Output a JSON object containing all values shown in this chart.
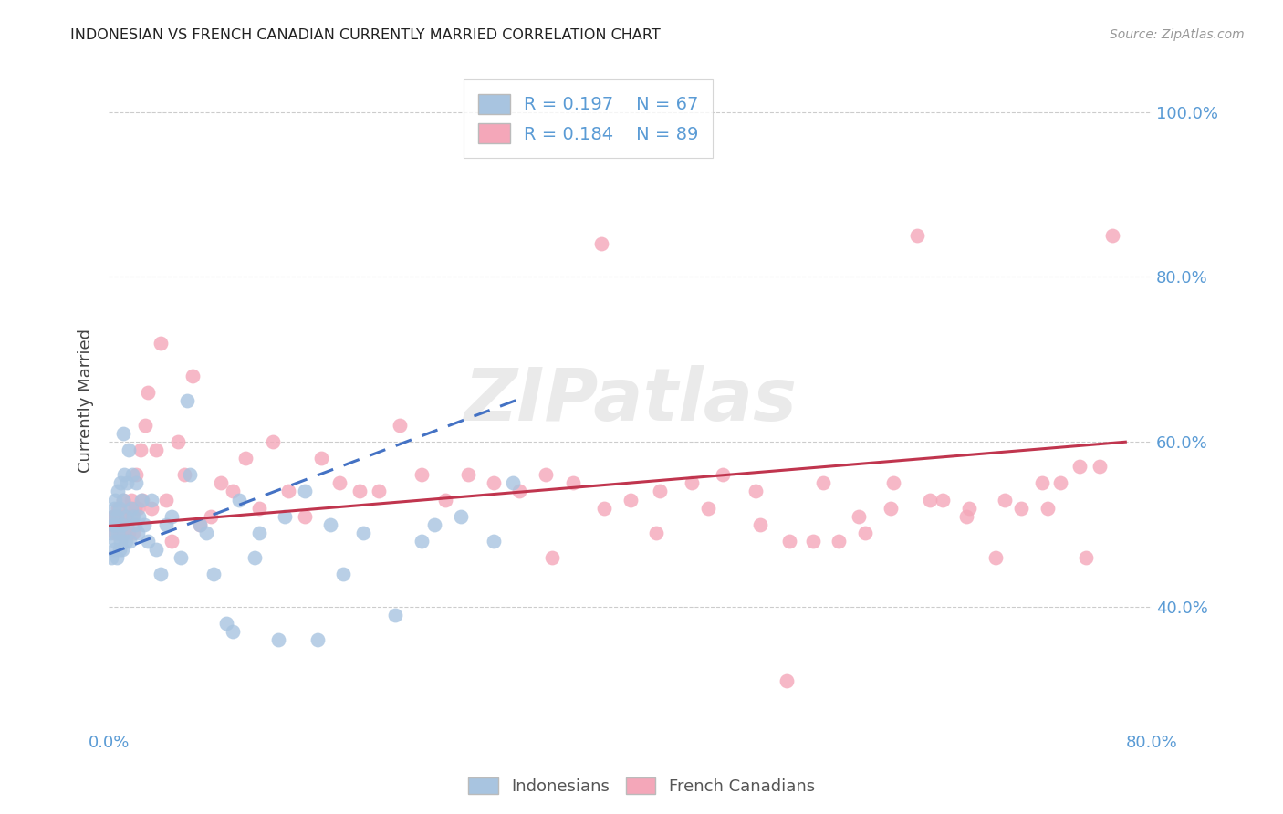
{
  "title": "INDONESIAN VS FRENCH CANADIAN CURRENTLY MARRIED CORRELATION CHART",
  "source": "Source: ZipAtlas.com",
  "ylabel": "Currently Married",
  "xlabel_indonesian": "Indonesians",
  "xlabel_french": "French Canadians",
  "xlim": [
    0.0,
    0.8
  ],
  "ylim": [
    0.25,
    1.05
  ],
  "y_ticks": [
    0.4,
    0.6,
    0.8,
    1.0
  ],
  "y_tick_labels": [
    "40.0%",
    "60.0%",
    "80.0%",
    "100.0%"
  ],
  "x_ticks": [
    0.0,
    0.1,
    0.2,
    0.3,
    0.4,
    0.5,
    0.6,
    0.7,
    0.8
  ],
  "x_tick_labels": [
    "0.0%",
    "",
    "",
    "",
    "",
    "",
    "",
    "",
    "80.0%"
  ],
  "color_indonesian": "#a8c4e0",
  "color_french": "#f4a7b9",
  "line_color_indonesian": "#4472c4",
  "line_color_french": "#c0354e",
  "watermark": "ZIPatlas",
  "legend_R_indonesian": "R = 0.197",
  "legend_N_indonesian": "N = 67",
  "legend_R_french": "R = 0.184",
  "legend_N_french": "N = 89",
  "background_color": "#ffffff",
  "grid_color": "#cccccc",
  "tick_label_color": "#5a9bd5",
  "indonesian_x": [
    0.001,
    0.002,
    0.003,
    0.003,
    0.004,
    0.004,
    0.005,
    0.005,
    0.005,
    0.006,
    0.006,
    0.007,
    0.007,
    0.008,
    0.008,
    0.009,
    0.009,
    0.01,
    0.01,
    0.011,
    0.011,
    0.012,
    0.012,
    0.013,
    0.013,
    0.014,
    0.015,
    0.016,
    0.017,
    0.018,
    0.019,
    0.02,
    0.021,
    0.022,
    0.023,
    0.025,
    0.027,
    0.03,
    0.033,
    0.036,
    0.04,
    0.044,
    0.048,
    0.055,
    0.062,
    0.07,
    0.08,
    0.09,
    0.1,
    0.115,
    0.13,
    0.15,
    0.17,
    0.195,
    0.22,
    0.25,
    0.27,
    0.295,
    0.31,
    0.24,
    0.18,
    0.16,
    0.135,
    0.112,
    0.095,
    0.075,
    0.06
  ],
  "indonesian_y": [
    0.49,
    0.46,
    0.5,
    0.51,
    0.47,
    0.52,
    0.48,
    0.5,
    0.53,
    0.46,
    0.51,
    0.49,
    0.54,
    0.47,
    0.52,
    0.48,
    0.55,
    0.5,
    0.47,
    0.53,
    0.61,
    0.49,
    0.56,
    0.48,
    0.51,
    0.55,
    0.59,
    0.48,
    0.52,
    0.56,
    0.51,
    0.5,
    0.55,
    0.49,
    0.51,
    0.53,
    0.5,
    0.48,
    0.53,
    0.47,
    0.44,
    0.5,
    0.51,
    0.46,
    0.56,
    0.5,
    0.44,
    0.38,
    0.53,
    0.49,
    0.36,
    0.54,
    0.5,
    0.49,
    0.39,
    0.5,
    0.51,
    0.48,
    0.55,
    0.48,
    0.44,
    0.36,
    0.51,
    0.46,
    0.37,
    0.49,
    0.65
  ],
  "french_x": [
    0.002,
    0.003,
    0.004,
    0.005,
    0.006,
    0.007,
    0.008,
    0.009,
    0.01,
    0.011,
    0.012,
    0.013,
    0.014,
    0.015,
    0.016,
    0.017,
    0.018,
    0.019,
    0.02,
    0.021,
    0.022,
    0.024,
    0.026,
    0.028,
    0.03,
    0.033,
    0.036,
    0.04,
    0.044,
    0.048,
    0.053,
    0.058,
    0.064,
    0.07,
    0.078,
    0.086,
    0.095,
    0.105,
    0.115,
    0.126,
    0.138,
    0.15,
    0.163,
    0.177,
    0.192,
    0.207,
    0.223,
    0.24,
    0.258,
    0.276,
    0.295,
    0.315,
    0.335,
    0.356,
    0.378,
    0.4,
    0.423,
    0.447,
    0.471,
    0.496,
    0.522,
    0.548,
    0.575,
    0.602,
    0.63,
    0.658,
    0.687,
    0.716,
    0.745,
    0.77,
    0.34,
    0.38,
    0.42,
    0.46,
    0.5,
    0.54,
    0.58,
    0.62,
    0.66,
    0.7,
    0.73,
    0.75,
    0.76,
    0.72,
    0.68,
    0.64,
    0.6,
    0.56,
    0.52
  ],
  "french_y": [
    0.5,
    0.51,
    0.49,
    0.51,
    0.5,
    0.52,
    0.49,
    0.51,
    0.5,
    0.53,
    0.49,
    0.51,
    0.5,
    0.49,
    0.52,
    0.53,
    0.51,
    0.49,
    0.52,
    0.56,
    0.52,
    0.59,
    0.53,
    0.62,
    0.66,
    0.52,
    0.59,
    0.72,
    0.53,
    0.48,
    0.6,
    0.56,
    0.68,
    0.5,
    0.51,
    0.55,
    0.54,
    0.58,
    0.52,
    0.6,
    0.54,
    0.51,
    0.58,
    0.55,
    0.54,
    0.54,
    0.62,
    0.56,
    0.53,
    0.56,
    0.55,
    0.54,
    0.56,
    0.55,
    0.84,
    0.53,
    0.54,
    0.55,
    0.56,
    0.54,
    0.48,
    0.55,
    0.51,
    0.55,
    0.53,
    0.51,
    0.53,
    0.55,
    0.57,
    0.85,
    0.46,
    0.52,
    0.49,
    0.52,
    0.5,
    0.48,
    0.49,
    0.85,
    0.52,
    0.52,
    0.55,
    0.46,
    0.57,
    0.52,
    0.46,
    0.53,
    0.52,
    0.48,
    0.31
  ]
}
